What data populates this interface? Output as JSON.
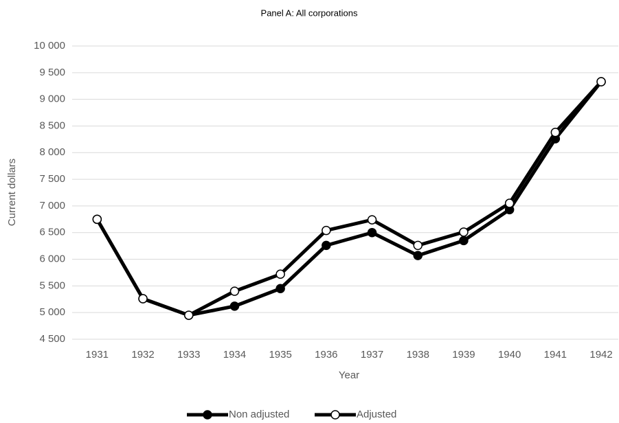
{
  "chart_data": {
    "type": "line",
    "title": "Panel A: All corporations",
    "x_label": "Year",
    "y_label": "Current dollars",
    "categories": [
      "1931",
      "1932",
      "1933",
      "1934",
      "1935",
      "1936",
      "1937",
      "1938",
      "1939",
      "1940",
      "1941",
      "1942"
    ],
    "series": [
      {
        "name": "Non adjusted",
        "color": "#000000",
        "marker_face": "#000000",
        "values": [
          6750,
          5260,
          4950,
          5120,
          5450,
          6260,
          6500,
          6070,
          6350,
          6930,
          8260,
          9330
        ]
      },
      {
        "name": "Adjusted",
        "color": "#000000",
        "marker_face": "#ffffff",
        "values": [
          6750,
          5260,
          4950,
          5400,
          5720,
          6540,
          6740,
          6260,
          6510,
          7050,
          8380,
          9330
        ]
      }
    ],
    "ylim": [
      4500,
      10000
    ],
    "yticks": [
      {
        "value": 4500,
        "label": "4 500"
      },
      {
        "value": 5000,
        "label": "5 000"
      },
      {
        "value": 5500,
        "label": "5 500"
      },
      {
        "value": 6000,
        "label": "6 000"
      },
      {
        "value": 6500,
        "label": "6 500"
      },
      {
        "value": 7000,
        "label": "7 000"
      },
      {
        "value": 7500,
        "label": "7 500"
      },
      {
        "value": 8000,
        "label": "8 000"
      },
      {
        "value": 8500,
        "label": "8 500"
      },
      {
        "value": 9000,
        "label": "9 000"
      },
      {
        "value": 9500,
        "label": "9 500"
      },
      {
        "value": 10000,
        "label": "10 000"
      }
    ],
    "grid": true,
    "legend": "bottom"
  }
}
